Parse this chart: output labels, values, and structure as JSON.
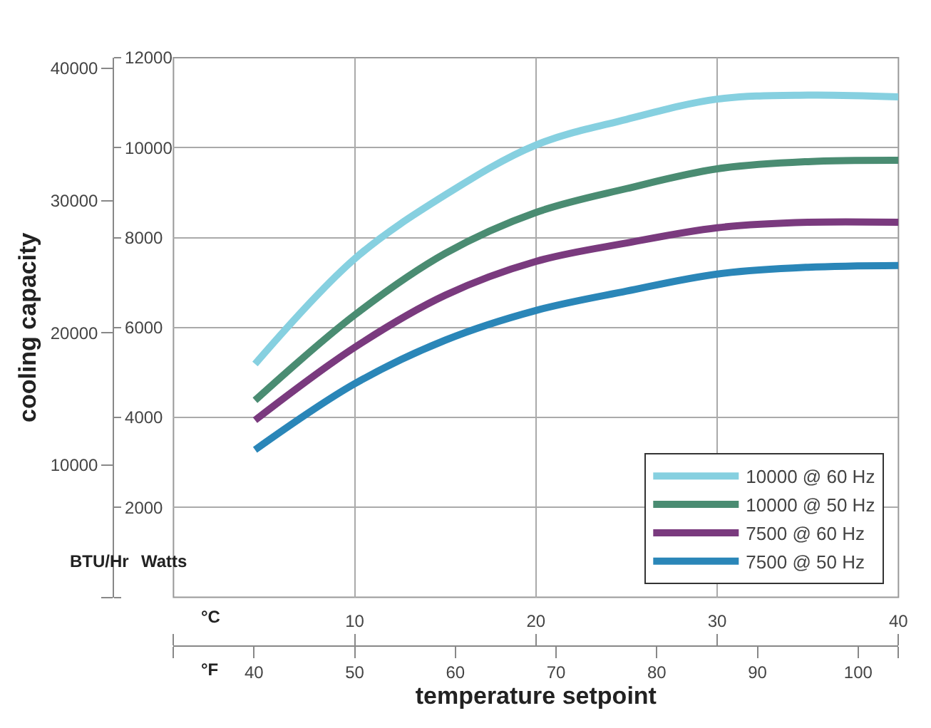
{
  "chart_data": {
    "type": "line",
    "y2label": "cooling capacity",
    "xlabel": "temperature setpoint",
    "annotations": [
      "BTU/Hr",
      "Watts",
      "°C",
      "°F"
    ],
    "x": [
      4.5,
      10,
      15,
      20,
      25,
      30,
      35,
      40
    ],
    "series": [
      {
        "name": "10000 @ 60 Hz",
        "color": "#86d0e0",
        "values": [
          5190,
          7530,
          8950,
          10060,
          10630,
          11080,
          11170,
          11130
        ]
      },
      {
        "name": "10000 @ 50 Hz",
        "color": "#4a8c72",
        "values": [
          4380,
          6280,
          7650,
          8560,
          9090,
          9530,
          9690,
          9720
        ]
      },
      {
        "name": "7500 @ 60 Hz",
        "color": "#7a3a7e",
        "values": [
          3940,
          5560,
          6720,
          7470,
          7880,
          8220,
          8340,
          8340
        ]
      },
      {
        "name": "7500 @ 50 Hz",
        "color": "#2a86b8",
        "values": [
          3280,
          4750,
          5720,
          6380,
          6810,
          7190,
          7340,
          7380
        ]
      }
    ],
    "xlim": [
      0,
      40
    ],
    "xticks": [
      {
        "value": 0,
        "label": null
      },
      10,
      20,
      30,
      40
    ],
    "x2lim": [
      32,
      104
    ],
    "x2ticks": [
      {
        "value": 32,
        "label": null
      },
      40,
      50,
      60,
      70,
      80,
      90,
      100,
      {
        "value": 104,
        "label": null
      }
    ],
    "ylim": [
      0,
      12000
    ],
    "yticks": [
      {
        "value": 0,
        "label": null
      },
      2000,
      4000,
      6000,
      8000,
      10000,
      12000
    ],
    "y2lim": [
      0,
      40800
    ],
    "y2ticks": [
      {
        "value": 0,
        "label": null
      },
      10000,
      20000,
      30000,
      40000
    ],
    "grid": true,
    "legend": "bottom right",
    "line_style": "solid",
    "marker": "none"
  }
}
